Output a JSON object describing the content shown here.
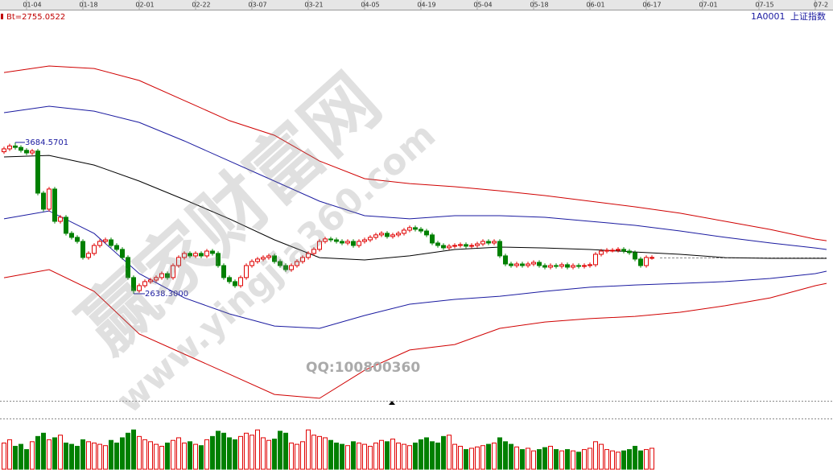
{
  "chart_data": {
    "type": "candlestick",
    "title": "上证指数",
    "code": "1A0001",
    "indicator": "Bt=2755.0522",
    "extreme_labels": {
      "high": "3684.5701",
      "low": "2638.3000"
    },
    "xlim": [
      -0.5,
      147.5
    ],
    "xticks": [
      {
        "value": 5,
        "label": "01-04"
      },
      {
        "value": 15,
        "label": "01-18"
      },
      {
        "value": 25,
        "label": "02-01"
      },
      {
        "value": 35,
        "label": "02-22"
      },
      {
        "value": 45,
        "label": "03-07"
      },
      {
        "value": 55,
        "label": "03-21"
      },
      {
        "value": 65,
        "label": "04-05"
      },
      {
        "value": 75,
        "label": "04-19"
      },
      {
        "value": 85,
        "label": "05-04"
      },
      {
        "value": 95,
        "label": "05-18"
      },
      {
        "value": 105,
        "label": "06-01"
      },
      {
        "value": 115,
        "label": "06-17"
      },
      {
        "value": 125,
        "label": "07-01"
      },
      {
        "value": 135,
        "label": "07-15"
      },
      {
        "value": 145,
        "label": "07-2"
      }
    ],
    "ylim": [
      1898,
      4558
    ],
    "up_color": "#e00000",
    "down_color": "#008000",
    "open": [
      3620,
      3640,
      3660,
      3650,
      3630,
      3612,
      3625,
      3334,
      3223,
      3362,
      3139,
      3167,
      3056,
      3028,
      3000,
      2889,
      2917,
      2972,
      3000,
      3011,
      2972,
      2945,
      2889,
      2750,
      2660,
      2694,
      2722,
      2733,
      2750,
      2777,
      2750,
      2833,
      2889,
      2917,
      2900,
      2917,
      2900,
      2933,
      2917,
      2833,
      2750,
      2722,
      2694,
      2750,
      2833,
      2861,
      2878,
      2889,
      2900,
      2861,
      2833,
      2805,
      2833,
      2861,
      2889,
      2917,
      2945,
      3000,
      3017,
      3011,
      3000,
      2989,
      3000,
      2972,
      3000,
      3011,
      3028,
      3045,
      3056,
      3034,
      3045,
      3056,
      3078,
      3095,
      3084,
      3072,
      3045,
      2989,
      2972,
      2956,
      2967,
      2972,
      2978,
      2967,
      2972,
      2983,
      3000,
      2989,
      3000,
      2900,
      2844,
      2833,
      2844,
      2833,
      2844,
      2855,
      2833,
      2822,
      2833,
      2828,
      2839,
      2822,
      2833,
      2828,
      2833,
      2839,
      2911,
      2933,
      2939,
      2939,
      2945,
      2933,
      2922,
      2878,
      2833,
      2889
    ],
    "high": [
      3655,
      3675,
      3684.5701,
      3665,
      3645,
      3640,
      3640,
      3349,
      3377,
      3377,
      3182,
      3182,
      3071,
      3043,
      3015,
      2932,
      2987,
      3015,
      3026,
      3026,
      2987,
      2960,
      2904,
      2765,
      2709,
      2737,
      2748,
      2765,
      2792,
      2792,
      2848,
      2904,
      2932,
      2932,
      2932,
      2932,
      2948,
      2948,
      2932,
      2848,
      2765,
      2737,
      2765,
      2848,
      2876,
      2893,
      2904,
      2915,
      2915,
      2876,
      2848,
      2848,
      2876,
      2904,
      2932,
      2960,
      3015,
      3032,
      3032,
      3026,
      3015,
      3015,
      3015,
      3015,
      3026,
      3043,
      3060,
      3071,
      3071,
      3060,
      3071,
      3093,
      3110,
      3110,
      3099,
      3087,
      3060,
      3004,
      2987,
      2982,
      2987,
      2993,
      2993,
      2987,
      2998,
      3015,
      3015,
      3015,
      3015,
      2915,
      2859,
      2859,
      2859,
      2859,
      2870,
      2870,
      2848,
      2848,
      2848,
      2854,
      2854,
      2848,
      2848,
      2848,
      2854,
      2926,
      2948,
      2954,
      2954,
      2960,
      2960,
      2948,
      2937,
      2893,
      2904,
      2904
    ],
    "low": [
      3605,
      3625,
      3635,
      3615,
      3597,
      3597,
      3319,
      3208,
      3208,
      3124,
      3124,
      3041,
      3013,
      2985,
      2874,
      2874,
      2902,
      2957,
      2985,
      2957,
      2930,
      2874,
      2735,
      2638.3,
      2645,
      2679,
      2707,
      2718,
      2735,
      2735,
      2735,
      2818,
      2874,
      2885,
      2885,
      2885,
      2885,
      2902,
      2818,
      2735,
      2707,
      2679,
      2679,
      2735,
      2818,
      2846,
      2863,
      2874,
      2846,
      2818,
      2790,
      2790,
      2818,
      2846,
      2874,
      2902,
      2930,
      2985,
      2996,
      2985,
      2974,
      2974,
      2957,
      2957,
      2985,
      2996,
      3013,
      3030,
      3019,
      3019,
      3030,
      3041,
      3063,
      3069,
      3057,
      3030,
      2974,
      2957,
      2941,
      2941,
      2952,
      2957,
      2952,
      2952,
      2957,
      2968,
      2974,
      2974,
      2885,
      2829,
      2818,
      2818,
      2818,
      2818,
      2829,
      2818,
      2807,
      2807,
      2813,
      2813,
      2807,
      2807,
      2813,
      2813,
      2818,
      2824,
      2896,
      2918,
      2924,
      2924,
      2918,
      2907,
      2863,
      2818,
      2818,
      2874
    ],
    "close": [
      3640,
      3660,
      3650,
      3630,
      3612,
      3625,
      3334,
      3223,
      3362,
      3139,
      3167,
      3056,
      3028,
      3000,
      2889,
      2917,
      2972,
      3000,
      3011,
      2972,
      2945,
      2889,
      2750,
      2660,
      2694,
      2722,
      2733,
      2750,
      2777,
      2750,
      2833,
      2889,
      2917,
      2900,
      2917,
      2900,
      2933,
      2917,
      2833,
      2750,
      2722,
      2694,
      2750,
      2833,
      2861,
      2878,
      2889,
      2900,
      2861,
      2833,
      2805,
      2833,
      2861,
      2889,
      2917,
      2945,
      3000,
      3017,
      3011,
      3000,
      2989,
      3000,
      2972,
      3000,
      3011,
      3028,
      3045,
      3056,
      3034,
      3045,
      3056,
      3078,
      3095,
      3084,
      3072,
      3045,
      2989,
      2972,
      2956,
      2967,
      2972,
      2978,
      2967,
      2972,
      2983,
      3000,
      2989,
      3000,
      2900,
      2844,
      2833,
      2844,
      2833,
      2844,
      2855,
      2833,
      2822,
      2833,
      2828,
      2839,
      2822,
      2833,
      2828,
      2833,
      2839,
      2911,
      2933,
      2939,
      2939,
      2945,
      2933,
      2922,
      2878,
      2833,
      2889,
      2889
    ],
    "volume_ylim": [
      0,
      75
    ],
    "volume": [
      40,
      45,
      35,
      38,
      30,
      42,
      50,
      55,
      45,
      48,
      52,
      40,
      38,
      35,
      45,
      42,
      40,
      38,
      36,
      44,
      40,
      48,
      55,
      60,
      50,
      45,
      42,
      38,
      35,
      40,
      44,
      48,
      40,
      42,
      38,
      36,
      45,
      50,
      58,
      55,
      48,
      45,
      50,
      55,
      52,
      60,
      48,
      44,
      46,
      58,
      55,
      40,
      38,
      42,
      60,
      52,
      50,
      48,
      44,
      40,
      38,
      36,
      42,
      40,
      38,
      35,
      40,
      44,
      42,
      46,
      40,
      38,
      36,
      40,
      45,
      48,
      42,
      40,
      50,
      52,
      38,
      35,
      30,
      32,
      34,
      36,
      38,
      40,
      48,
      42,
      38,
      34,
      30,
      32,
      28,
      30,
      33,
      35,
      30,
      28,
      30,
      28,
      26,
      30,
      32,
      42,
      38,
      30,
      28,
      26,
      28,
      30,
      35,
      28,
      30,
      32
    ],
    "lines": [
      {
        "color": "#d00000",
        "x": [
          0,
          8,
          16,
          24,
          32,
          40,
          48,
          56,
          64,
          72,
          80,
          88,
          96,
          104,
          112,
          120,
          128,
          136,
          144,
          146
        ],
        "values": [
          4168,
          4213,
          4196,
          4113,
          3974,
          3835,
          3734,
          3556,
          3434,
          3400,
          3378,
          3350,
          3317,
          3278,
          3239,
          3195,
          3139,
          3083,
          3016,
          3005
        ]
      },
      {
        "color": "#1a1aa0",
        "x": [
          0,
          8,
          16,
          24,
          32,
          40,
          48,
          56,
          64,
          72,
          80,
          88,
          96,
          104,
          112,
          120,
          128,
          136,
          144,
          146
        ],
        "values": [
          3890,
          3935,
          3901,
          3823,
          3695,
          3556,
          3417,
          3278,
          3178,
          3156,
          3178,
          3178,
          3167,
          3139,
          3111,
          3072,
          3028,
          2989,
          2955,
          2944
        ]
      },
      {
        "color": "#000000",
        "x": [
          0,
          8,
          16,
          24,
          32,
          40,
          48,
          56,
          64,
          72,
          80,
          88,
          96,
          104,
          112,
          120,
          128,
          136,
          144,
          146
        ],
        "values": [
          3584,
          3595,
          3528,
          3417,
          3289,
          3156,
          3011,
          2888,
          2872,
          2900,
          2944,
          2961,
          2955,
          2944,
          2927,
          2911,
          2888,
          2883,
          2883,
          2883
        ]
      },
      {
        "color": "#1a1aa0",
        "x": [
          0,
          8,
          16,
          24,
          32,
          40,
          48,
          56,
          64,
          72,
          80,
          88,
          96,
          104,
          112,
          120,
          128,
          136,
          144,
          146
        ],
        "values": [
          3156,
          3211,
          3055,
          2777,
          2610,
          2499,
          2415,
          2399,
          2488,
          2566,
          2599,
          2621,
          2655,
          2683,
          2699,
          2710,
          2722,
          2744,
          2777,
          2794
        ]
      },
      {
        "color": "#d00000",
        "x": [
          0,
          8,
          16,
          24,
          32,
          40,
          48,
          56,
          64,
          72,
          80,
          88,
          96,
          104,
          112,
          120,
          128,
          136,
          144,
          146
        ],
        "values": [
          2749,
          2805,
          2655,
          2360,
          2221,
          2082,
          1942,
          1915,
          2109,
          2249,
          2287,
          2399,
          2443,
          2466,
          2482,
          2510,
          2555,
          2610,
          2694,
          2710
        ]
      }
    ]
  },
  "watermark": {
    "brand": "赢家财富网",
    "url": "www.yingjia360.com",
    "qq": "QQ:100800360"
  }
}
